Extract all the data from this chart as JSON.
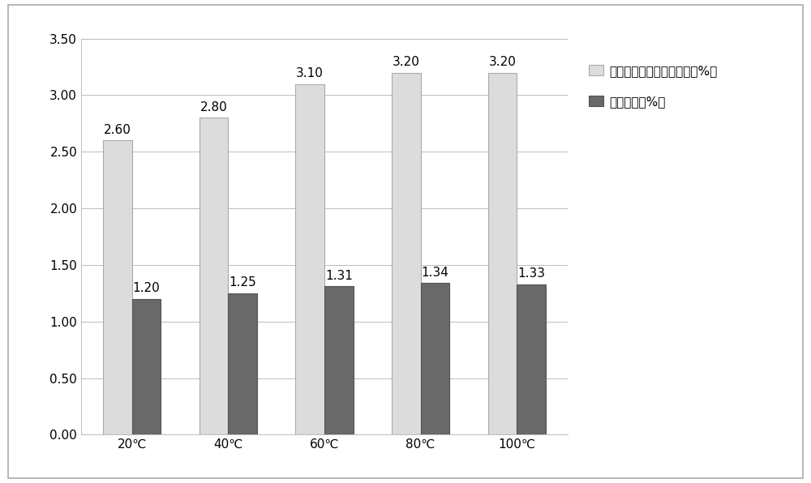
{
  "categories": [
    "20℃",
    "40℃",
    "60℃",
    "80℃",
    "100℃"
  ],
  "series1_values": [
    2.6,
    2.8,
    3.1,
    3.2,
    3.2
  ],
  "series2_values": [
    1.2,
    1.25,
    1.31,
    1.34,
    1.33
  ],
  "series1_label": "对甲氧基肉桂酸乙酯含量（%）",
  "series2_label": "龙脑含量（%）",
  "series1_color": "#dcdcdc",
  "series2_color": "#696969",
  "series1_edge": "#aaaaaa",
  "series2_edge": "#555555",
  "ylim": [
    0,
    3.5
  ],
  "yticks": [
    0.0,
    0.5,
    1.0,
    1.5,
    2.0,
    2.5,
    3.0,
    3.5
  ],
  "bar_width": 0.3,
  "background_color": "#ffffff",
  "grid_color": "#bbbbbb",
  "outer_border_color": "#aaaaaa",
  "label_fontsize": 11,
  "tick_fontsize": 11,
  "legend_fontsize": 11,
  "value_fontsize": 11
}
